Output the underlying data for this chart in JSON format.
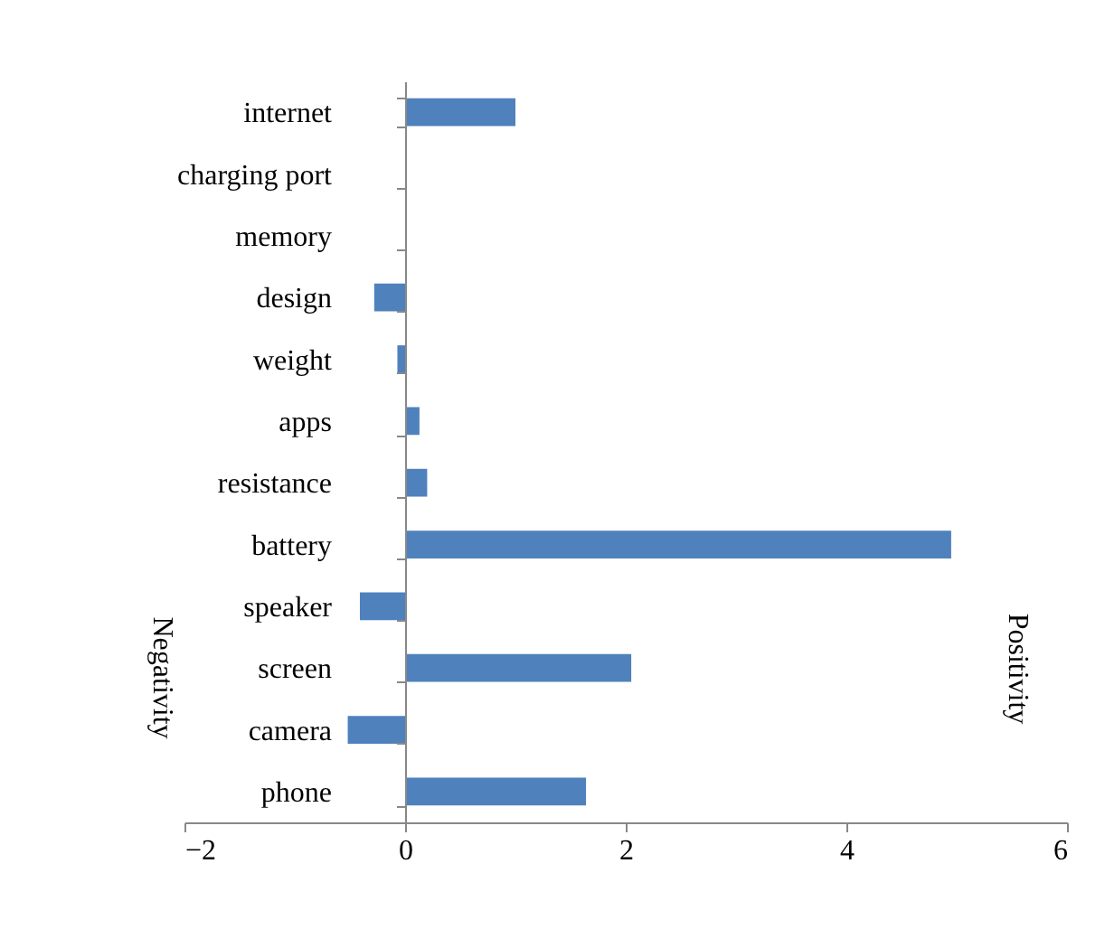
{
  "chart_data": {
    "type": "bar",
    "orientation": "horizontal",
    "categories": [
      "internet",
      "charging port",
      "memory",
      "design",
      "weight",
      "apps",
      "resistance",
      "battery",
      "speaker",
      "screen",
      "camera",
      "phone"
    ],
    "values": [
      1.0,
      0,
      0,
      -0.28,
      -0.07,
      0.13,
      0.2,
      4.95,
      -0.41,
      2.05,
      -0.52,
      1.64
    ],
    "color": "#4f81bd",
    "xlim": [
      -2,
      6
    ],
    "xticks": [
      -2,
      0,
      2,
      4,
      6
    ],
    "grid": false,
    "annotations": [
      "Negativity",
      "Positivity"
    ]
  }
}
